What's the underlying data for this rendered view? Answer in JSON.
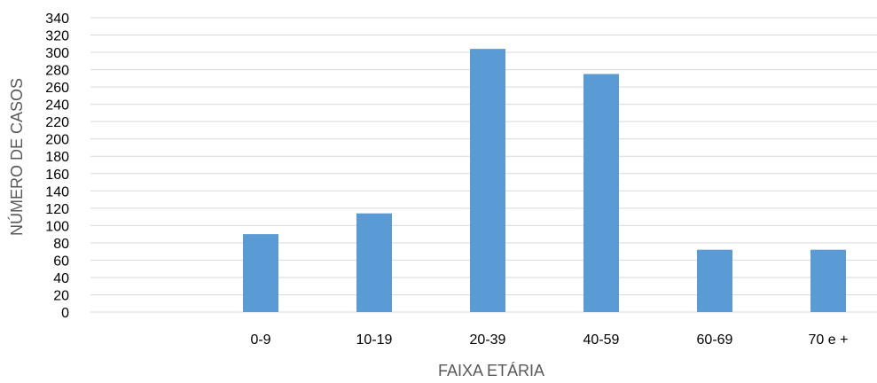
{
  "chart_data": {
    "type": "bar",
    "categories": [
      "",
      "0-9",
      "10-19",
      "20-39",
      "40-59",
      "60-69",
      "70 e +"
    ],
    "values": [
      0,
      90,
      114,
      304,
      275,
      72,
      72
    ],
    "title": "",
    "xlabel": "FAIXA ETÁRIA",
    "ylabel": "NÚMERO DE CASOS",
    "ylim": [
      0,
      340
    ],
    "ytick_step": 20,
    "grid": true,
    "legend": "none",
    "bar_color": "#5b9bd5"
  }
}
